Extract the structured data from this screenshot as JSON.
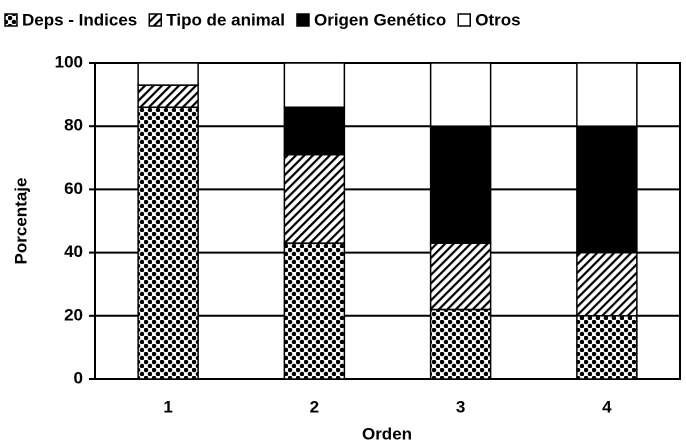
{
  "chart_data": {
    "type": "stacked_bar",
    "categories": [
      "1",
      "2",
      "3",
      "4"
    ],
    "series": [
      {
        "name": "Deps - Indices",
        "pattern": "checker",
        "values": [
          86,
          43,
          22,
          20
        ]
      },
      {
        "name": "Tipo de animal",
        "pattern": "hatch",
        "values": [
          7,
          28,
          21,
          20
        ]
      },
      {
        "name": "Origen Genético",
        "pattern": "solid",
        "values": [
          0,
          15,
          37,
          40
        ]
      },
      {
        "name": "Otros",
        "pattern": "white",
        "values": [
          7,
          14,
          20,
          20
        ]
      }
    ],
    "x_label": "Orden",
    "y_label": "Porcentaje",
    "ylim": [
      0,
      100
    ],
    "yticks": [
      0,
      20,
      40,
      60,
      80,
      100
    ],
    "grid": true,
    "legend": "top"
  }
}
